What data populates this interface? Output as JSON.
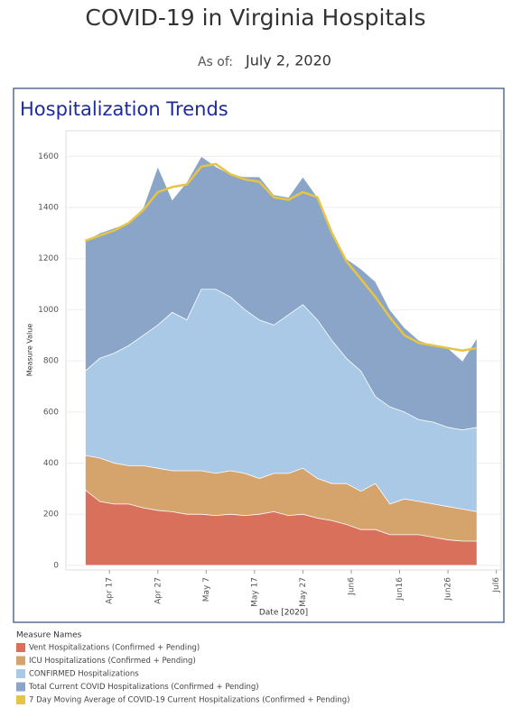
{
  "header": {
    "title": "COVID-19 in Virginia Hospitals",
    "as_of_label": "As of:",
    "as_of_date": "July 2, 2020"
  },
  "chart_data": {
    "type": "area",
    "title": "Hospitalization Trends",
    "x_label": "Date [2020]",
    "y_label": "Measure Value",
    "legend_title": "Measure Names",
    "x": [
      "2020-04-12",
      "2020-04-15",
      "2020-04-18",
      "2020-04-21",
      "2020-04-24",
      "2020-04-27",
      "2020-04-30",
      "2020-05-03",
      "2020-05-06",
      "2020-05-09",
      "2020-05-12",
      "2020-05-15",
      "2020-05-18",
      "2020-05-21",
      "2020-05-24",
      "2020-05-27",
      "2020-05-30",
      "2020-06-02",
      "2020-06-05",
      "2020-06-08",
      "2020-06-11",
      "2020-06-14",
      "2020-06-17",
      "2020-06-20",
      "2020-06-23",
      "2020-06-26",
      "2020-06-29",
      "2020-07-02"
    ],
    "series": [
      {
        "name": "Total Current COVID Hospitalizations (Confirmed + Pending)",
        "color": "#8aa5c8",
        "mark": "area",
        "values": [
          1270,
          1300,
          1320,
          1340,
          1400,
          1560,
          1430,
          1500,
          1600,
          1560,
          1530,
          1520,
          1520,
          1450,
          1440,
          1520,
          1440,
          1310,
          1200,
          1160,
          1110,
          1000,
          930,
          880,
          860,
          850,
          800,
          890
        ]
      },
      {
        "name": "CONFIRMED Hospitalizations",
        "color": "#a9c9e6",
        "mark": "area",
        "values": [
          760,
          810,
          830,
          860,
          900,
          940,
          990,
          960,
          1080,
          1080,
          1050,
          1000,
          960,
          940,
          980,
          1020,
          960,
          880,
          810,
          760,
          660,
          620,
          600,
          570,
          560,
          540,
          530,
          540
        ]
      },
      {
        "name": "ICU Hospitalizations (Confirmed + Pending)",
        "color": "#d5a46c",
        "mark": "area",
        "values": [
          430,
          420,
          400,
          390,
          390,
          380,
          370,
          370,
          370,
          360,
          370,
          360,
          340,
          360,
          360,
          380,
          340,
          320,
          320,
          290,
          320,
          240,
          260,
          250,
          240,
          230,
          220,
          210
        ]
      },
      {
        "name": "Vent Hospitalizations (Confirmed + Pending)",
        "color": "#d9705c",
        "mark": "area",
        "values": [
          295,
          250,
          240,
          240,
          225,
          215,
          210,
          200,
          200,
          195,
          200,
          195,
          200,
          210,
          195,
          200,
          185,
          175,
          160,
          140,
          140,
          120,
          120,
          120,
          110,
          100,
          95,
          95
        ]
      },
      {
        "name": "7 Day Moving Average of COVID-19 Current Hospitalizations (Confirmed + Pending)",
        "color": "#e6c445",
        "mark": "line",
        "values": [
          1270,
          1290,
          1310,
          1340,
          1390,
          1460,
          1480,
          1490,
          1560,
          1570,
          1530,
          1510,
          1500,
          1440,
          1430,
          1460,
          1440,
          1300,
          1190,
          1120,
          1050,
          970,
          900,
          870,
          860,
          850,
          840,
          850
        ]
      }
    ],
    "legend_order": [
      3,
      2,
      1,
      0,
      4
    ],
    "ylim": [
      -18,
      1700
    ],
    "yticks": [
      0,
      200,
      400,
      600,
      800,
      1000,
      1200,
      1400,
      1600
    ],
    "xlim": [
      "2020-04-08",
      "2020-07-07"
    ],
    "xticks": [
      {
        "value": "2020-04-17",
        "label": "Apr 17"
      },
      {
        "value": "2020-04-27",
        "label": "Apr 27"
      },
      {
        "value": "2020-05-07",
        "label": "May 7"
      },
      {
        "value": "2020-05-17",
        "label": "May 17"
      },
      {
        "value": "2020-05-27",
        "label": "May 27"
      },
      {
        "value": "2020-06-06",
        "label": "Jun6"
      },
      {
        "value": "2020-06-16",
        "label": "Jun16"
      },
      {
        "value": "2020-06-26",
        "label": "Jun26"
      },
      {
        "value": "2020-07-06",
        "label": "Jul6"
      }
    ],
    "grid": true
  }
}
